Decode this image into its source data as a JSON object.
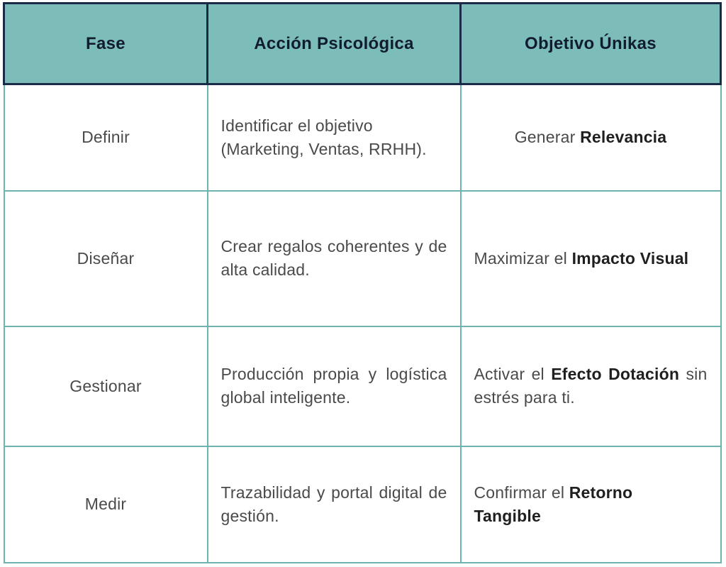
{
  "colors": {
    "header_bg": "#7cbcb9",
    "header_border": "#1b2a46",
    "header_text": "#111c31",
    "body_border": "#6fb3b0",
    "text": "#4a4a4a",
    "text_bold": "#1f1f1f",
    "page_bg": "#ffffff"
  },
  "table": {
    "header": {
      "fase": "Fase",
      "accion": "Acción Psicológica",
      "objetivo": "Objetivo Únikas"
    },
    "rows": [
      {
        "fase": "Definir",
        "accion": "Identificar el objetivo (Marketing, Ventas, RRHH).",
        "objetivo": {
          "pre": "Generar ",
          "bold": "Relevancia",
          "post": ""
        }
      },
      {
        "fase": "Diseñar",
        "accion": "Crear regalos coherentes y de alta calidad.",
        "objetivo": {
          "pre": "Maximizar el ",
          "bold": "Impacto Visual",
          "post": ""
        }
      },
      {
        "fase": "Gestionar",
        "accion": "Producción propia y logística global inteligente.",
        "objetivo": {
          "pre": "Activar el ",
          "bold": "Efecto Dotación",
          "post": " sin estrés para ti."
        }
      },
      {
        "fase": "Medir",
        "accion": "Trazabilidad y portal digital de gestión.",
        "objetivo": {
          "pre": "Confirmar el ",
          "bold": "Retorno Tangible",
          "post": ""
        }
      }
    ]
  }
}
